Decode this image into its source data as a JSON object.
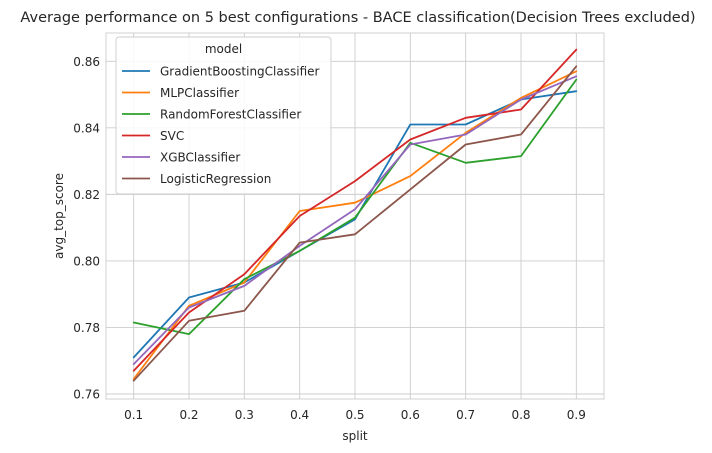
{
  "chart_data": {
    "type": "line",
    "title": "Average performance on 5 best configurations - BACE classification(Decision Trees excluded)",
    "xlabel": "split",
    "ylabel": "avg_top_score",
    "x": [
      0.1,
      0.2,
      0.3,
      0.4,
      0.5,
      0.6,
      0.7,
      0.8,
      0.9
    ],
    "x_tick_labels": [
      "0.1",
      "0.2",
      "0.3",
      "0.4",
      "0.5",
      "0.6",
      "0.7",
      "0.8",
      "0.9"
    ],
    "y_ticks": [
      0.76,
      0.78,
      0.8,
      0.82,
      0.84,
      0.86
    ],
    "y_tick_labels": [
      "0.76",
      "0.78",
      "0.80",
      "0.82",
      "0.84",
      "0.86"
    ],
    "xlim": [
      0.05,
      0.95
    ],
    "ylim": [
      0.7585,
      0.8685
    ],
    "grid": true,
    "legend": {
      "title": "model",
      "placement": "upper-left"
    },
    "series": [
      {
        "name": "GradientBoostingClassifier",
        "color": "#1f77b4",
        "values": [
          0.771,
          0.789,
          0.7935,
          0.803,
          0.8125,
          0.841,
          0.841,
          0.8485,
          0.851
        ]
      },
      {
        "name": "MLPClassifier",
        "color": "#ff7f0e",
        "values": [
          0.7645,
          0.7865,
          0.7935,
          0.815,
          0.8175,
          0.8255,
          0.8385,
          0.849,
          0.857
        ]
      },
      {
        "name": "RandomForestClassifier",
        "color": "#2ca02c",
        "values": [
          0.7815,
          0.778,
          0.7945,
          0.803,
          0.813,
          0.8355,
          0.8295,
          0.8315,
          0.8545
        ]
      },
      {
        "name": "SVC",
        "color": "#d62728",
        "values": [
          0.767,
          0.7845,
          0.796,
          0.8135,
          0.824,
          0.8365,
          0.843,
          0.8455,
          0.8635
        ]
      },
      {
        "name": "XGBClassifier",
        "color": "#9467bd",
        "values": [
          0.769,
          0.786,
          0.7925,
          0.8045,
          0.8155,
          0.835,
          0.838,
          0.8485,
          0.8555
        ]
      },
      {
        "name": "LogisticRegression",
        "color": "#8c564b",
        "values": [
          0.764,
          0.782,
          0.785,
          0.8055,
          0.808,
          0.8215,
          0.835,
          0.838,
          0.8585
        ]
      }
    ]
  }
}
